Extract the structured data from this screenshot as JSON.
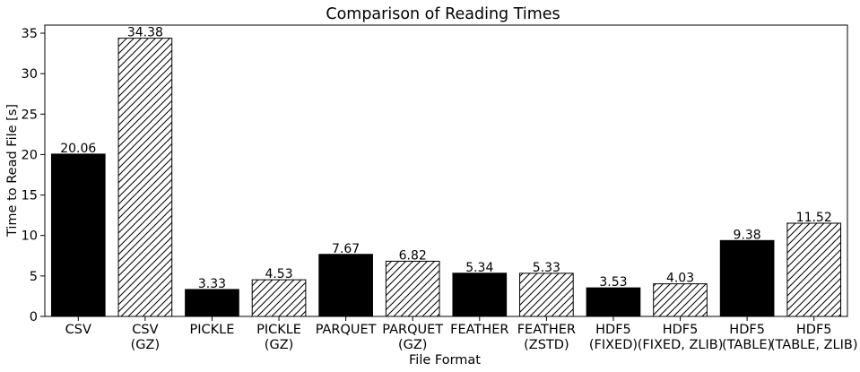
{
  "chart_data": {
    "type": "bar",
    "title": "Comparison of Reading Times",
    "xlabel": "File Format",
    "ylabel": "Time to Read File [s]",
    "ylim": [
      0,
      36
    ],
    "yticks": [
      0,
      5,
      10,
      15,
      20,
      25,
      30,
      35
    ],
    "grid": false,
    "categories": [
      [
        "CSV"
      ],
      [
        "CSV",
        "(GZ)"
      ],
      [
        "PICKLE"
      ],
      [
        "PICKLE",
        "(GZ)"
      ],
      [
        "PARQUET"
      ],
      [
        "PARQUET",
        "(GZ)"
      ],
      [
        "FEATHER"
      ],
      [
        "FEATHER",
        "(ZSTD)"
      ],
      [
        "HDF5",
        "(FIXED)"
      ],
      [
        "HDF5",
        "(FIXED, ZLIB)"
      ],
      [
        "HDF5",
        "(TABLE)"
      ],
      [
        "HDF5",
        "(TABLE, ZLIB)"
      ]
    ],
    "values": [
      20.06,
      34.38,
      3.33,
      4.53,
      7.67,
      6.82,
      5.34,
      5.33,
      3.53,
      4.03,
      9.38,
      11.52
    ],
    "value_labels": [
      "20.06",
      "34.38",
      "3.33",
      "4.53",
      "7.67",
      "6.82",
      "5.34",
      "5.33",
      "3.53",
      "4.03",
      "9.38",
      "11.52"
    ],
    "fill": [
      "solid",
      "hatched",
      "solid",
      "hatched",
      "solid",
      "hatched",
      "solid",
      "hatched",
      "solid",
      "hatched",
      "solid",
      "hatched"
    ],
    "colors": {
      "solid": "#000000",
      "hatch": "#000000",
      "background": "#ffffff"
    }
  }
}
